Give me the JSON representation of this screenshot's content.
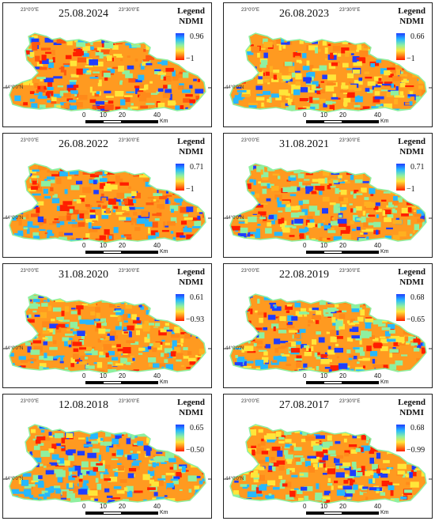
{
  "coordinates": {
    "lon_left": "23°0'0\"E",
    "lon_right": "23°30'0\"E",
    "lat": "44°0'0\"N"
  },
  "legend": {
    "title": "Legend",
    "index": "NDMI"
  },
  "scale_bar": {
    "ticks": [
      "0",
      "10",
      "20",
      "40"
    ],
    "unit": "Km"
  },
  "colors": {
    "high": "#1f3dff",
    "mid_high": "#26b8ff",
    "mid": "#8ef0a0",
    "mid_low": "#ffe63a",
    "low": "#ff1e00"
  },
  "panels": [
    {
      "date": "25.08.2024",
      "max": "0.96",
      "min": "−1"
    },
    {
      "date": "26.08.2023",
      "max": "0.66",
      "min": "−1"
    },
    {
      "date": "26.08.2022",
      "max": "0.71",
      "min": "−1"
    },
    {
      "date": "31.08.2021",
      "max": "0.71",
      "min": "−1"
    },
    {
      "date": "31.08.2020",
      "max": "0.61",
      "min": "−0.93"
    },
    {
      "date": "22.08.2019",
      "max": "0.68",
      "min": "−0.65"
    },
    {
      "date": "12.08.2018",
      "max": "0.65",
      "min": "−0.50"
    },
    {
      "date": "27.08.2017",
      "max": "0.68",
      "min": "−0.99"
    }
  ]
}
